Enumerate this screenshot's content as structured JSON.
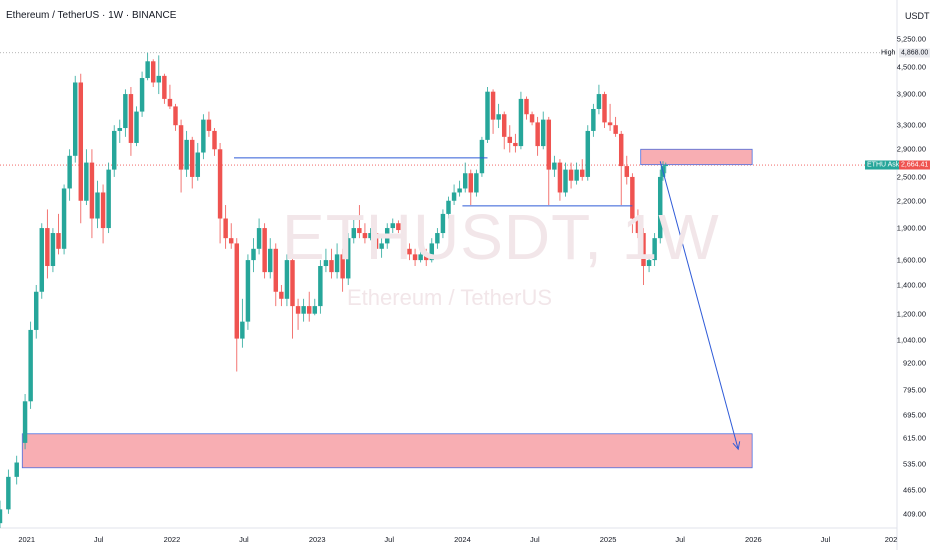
{
  "header": {
    "symbol_title": "Ethereum / TetherUS · 1W · BINANCE",
    "currency": "USDT"
  },
  "watermark": {
    "ticker": "ETHUSDT, 1W",
    "name": "Ethereum / TetherUS"
  },
  "price_axis": {
    "ticks": [
      "5,250.00",
      "4,500.00",
      "3,900.00",
      "3,300.00",
      "2,900.00",
      "2,500.00",
      "2,200.00",
      "1,900.00",
      "1,600.00",
      "1,400.00",
      "1,200.00",
      "1,040.00",
      "920.00",
      "795.00",
      "695.00",
      "615.00",
      "535.00",
      "465.00",
      "409.00"
    ],
    "high_label": "High",
    "high_value": "4,868.00",
    "current_label": "ETHU Ask",
    "current_value": "2,664.41"
  },
  "time_axis": {
    "ticks": [
      "2021",
      "Jul",
      "2022",
      "Jul",
      "2023",
      "Jul",
      "2024",
      "Jul",
      "2025",
      "Jul",
      "2026",
      "Jul",
      "202"
    ]
  },
  "colors": {
    "up": "#26a69a",
    "down": "#ef5350",
    "zone_fill": "#f8aeb3",
    "zone_border": "#4a6ee0",
    "line": "#2f5bd8",
    "high_line": "#9e9e9e",
    "current_line": "#ef5350"
  },
  "drawings": {
    "upper_zone": {
      "start": "2025-03-24",
      "end": "2025-12-29",
      "low": 2670,
      "high": 2900
    },
    "lower_zone": {
      "start": "2020-12-21",
      "end": "2025-12-29",
      "low": 525,
      "high": 630
    },
    "horizontal_lines": [
      {
        "start": "2022-06-06",
        "end": "2024-03-04",
        "price": 2770
      },
      {
        "start": "2024-01-01",
        "end": "2025-03-03",
        "price": 2140
      }
    ],
    "projection": {
      "from_date": "2025-05-12",
      "from_price": 2720,
      "to_date": "2025-11-24",
      "to_price": 580
    }
  },
  "chart_data": {
    "type": "candlestick",
    "title": "Ethereum / TetherUS · 1W · BINANCE",
    "scale": "log",
    "ylim": [
      380,
      5500
    ],
    "x_range": [
      "2020-10-26",
      "2026-12-28"
    ],
    "grid": false,
    "high": 4868,
    "last": 2664.41,
    "candles": [
      [
        "2020-10-26",
        390,
        440,
        380,
        420
      ],
      [
        "2020-11-16",
        420,
        520,
        410,
        500
      ],
      [
        "2020-12-07",
        500,
        560,
        480,
        540
      ],
      [
        "2020-12-28",
        600,
        780,
        580,
        750
      ],
      [
        "2021-01-11",
        750,
        1150,
        720,
        1100
      ],
      [
        "2021-01-25",
        1100,
        1400,
        1050,
        1350
      ],
      [
        "2021-02-08",
        1350,
        1950,
        1300,
        1900
      ],
      [
        "2021-02-22",
        1900,
        2100,
        1450,
        1550
      ],
      [
        "2021-03-08",
        1550,
        1900,
        1500,
        1850
      ],
      [
        "2021-03-22",
        1850,
        2050,
        1650,
        1700
      ],
      [
        "2021-04-05",
        1700,
        2400,
        1650,
        2350
      ],
      [
        "2021-04-19",
        2350,
        2900,
        2200,
        2800
      ],
      [
        "2021-05-03",
        2800,
        4300,
        2700,
        4150
      ],
      [
        "2021-05-17",
        4150,
        4350,
        1950,
        2200
      ],
      [
        "2021-05-31",
        2200,
        2900,
        2150,
        2700
      ],
      [
        "2021-06-14",
        2700,
        2900,
        1800,
        2000
      ],
      [
        "2021-06-28",
        2000,
        2450,
        1900,
        2300
      ],
      [
        "2021-07-12",
        2300,
        2400,
        1750,
        1900
      ],
      [
        "2021-07-26",
        1900,
        2700,
        1850,
        2600
      ],
      [
        "2021-08-09",
        2600,
        3300,
        2500,
        3200
      ],
      [
        "2021-08-23",
        3200,
        3400,
        3000,
        3250
      ],
      [
        "2021-09-06",
        3250,
        4000,
        3100,
        3900
      ],
      [
        "2021-09-20",
        3900,
        4050,
        2800,
        3000
      ],
      [
        "2021-10-04",
        3000,
        3650,
        2950,
        3550
      ],
      [
        "2021-10-18",
        3550,
        4400,
        3450,
        4250
      ],
      [
        "2021-11-01",
        4250,
        4868,
        4200,
        4650
      ],
      [
        "2021-11-15",
        4650,
        4700,
        4050,
        4150
      ],
      [
        "2021-11-29",
        4150,
        4800,
        3900,
        4300
      ],
      [
        "2021-12-13",
        4300,
        4350,
        3700,
        3800
      ],
      [
        "2021-12-27",
        3800,
        4100,
        3600,
        3650
      ],
      [
        "2022-01-10",
        3650,
        3700,
        3200,
        3300
      ],
      [
        "2022-01-24",
        3300,
        3400,
        2300,
        2600
      ],
      [
        "2022-02-07",
        2600,
        3200,
        2500,
        3050
      ],
      [
        "2022-02-21",
        3050,
        3100,
        2350,
        2500
      ],
      [
        "2022-03-07",
        2500,
        3000,
        2450,
        2850
      ],
      [
        "2022-03-21",
        2850,
        3500,
        2750,
        3400
      ],
      [
        "2022-04-04",
        3400,
        3550,
        3100,
        3200
      ],
      [
        "2022-04-18",
        3200,
        3250,
        2800,
        2900
      ],
      [
        "2022-05-02",
        2900,
        3000,
        1750,
        2000
      ],
      [
        "2022-05-16",
        2000,
        2150,
        1700,
        1800
      ],
      [
        "2022-05-30",
        1800,
        1950,
        1700,
        1750
      ],
      [
        "2022-06-13",
        1750,
        1800,
        880,
        1050
      ],
      [
        "2022-06-27",
        1050,
        1300,
        1000,
        1150
      ],
      [
        "2022-07-11",
        1150,
        1650,
        1100,
        1600
      ],
      [
        "2022-07-25",
        1600,
        1800,
        1500,
        1700
      ],
      [
        "2022-08-08",
        1700,
        2000,
        1650,
        1900
      ],
      [
        "2022-08-22",
        1900,
        1950,
        1450,
        1500
      ],
      [
        "2022-09-05",
        1500,
        1800,
        1450,
        1700
      ],
      [
        "2022-09-19",
        1700,
        1750,
        1250,
        1350
      ],
      [
        "2022-10-03",
        1350,
        1400,
        1250,
        1300
      ],
      [
        "2022-10-17",
        1300,
        1650,
        1250,
        1600
      ],
      [
        "2022-10-31",
        1600,
        1650,
        1050,
        1250
      ],
      [
        "2022-11-14",
        1250,
        1300,
        1100,
        1200
      ],
      [
        "2022-11-28",
        1200,
        1300,
        1150,
        1250
      ],
      [
        "2022-12-12",
        1250,
        1350,
        1150,
        1200
      ],
      [
        "2022-12-26",
        1200,
        1300,
        1190,
        1250
      ],
      [
        "2023-01-09",
        1250,
        1600,
        1200,
        1550
      ],
      [
        "2023-01-23",
        1550,
        1700,
        1500,
        1600
      ],
      [
        "2023-02-06",
        1600,
        1700,
        1450,
        1500
      ],
      [
        "2023-02-20",
        1500,
        1750,
        1450,
        1650
      ],
      [
        "2023-03-06",
        1650,
        1700,
        1350,
        1450
      ],
      [
        "2023-03-20",
        1450,
        1850,
        1400,
        1800
      ],
      [
        "2023-04-03",
        1800,
        2000,
        1750,
        1900
      ],
      [
        "2023-04-17",
        1900,
        2150,
        1800,
        1850
      ],
      [
        "2023-05-01",
        1850,
        1950,
        1750,
        1800
      ],
      [
        "2023-05-15",
        1800,
        1900,
        1780,
        1850
      ],
      [
        "2023-05-29",
        1850,
        1900,
        1650,
        1700
      ],
      [
        "2023-06-12",
        1700,
        1800,
        1620,
        1750
      ],
      [
        "2023-06-26",
        1750,
        1950,
        1700,
        1900
      ],
      [
        "2023-07-10",
        1900,
        2000,
        1850,
        1950
      ],
      [
        "2023-07-24",
        1950,
        1980,
        1850,
        1880
      ],
      [
        "2023-08-07",
        1880,
        1900,
        1650,
        1700
      ],
      [
        "2023-08-21",
        1700,
        1750,
        1600,
        1650
      ],
      [
        "2023-09-04",
        1650,
        1700,
        1550,
        1600
      ],
      [
        "2023-09-18",
        1600,
        1700,
        1580,
        1650
      ],
      [
        "2023-10-02",
        1650,
        1700,
        1550,
        1600
      ],
      [
        "2023-10-16",
        1600,
        1800,
        1580,
        1750
      ],
      [
        "2023-10-30",
        1750,
        1900,
        1700,
        1850
      ],
      [
        "2023-11-13",
        1850,
        2100,
        1800,
        2050
      ],
      [
        "2023-11-27",
        2050,
        2250,
        2000,
        2200
      ],
      [
        "2023-12-11",
        2200,
        2400,
        2150,
        2300
      ],
      [
        "2023-12-25",
        2300,
        2450,
        2250,
        2350
      ],
      [
        "2024-01-08",
        2350,
        2700,
        2300,
        2550
      ],
      [
        "2024-01-22",
        2550,
        2600,
        2150,
        2300
      ],
      [
        "2024-02-05",
        2300,
        2600,
        2250,
        2550
      ],
      [
        "2024-02-19",
        2550,
        3100,
        2500,
        3050
      ],
      [
        "2024-03-04",
        3050,
        4050,
        3000,
        3950
      ],
      [
        "2024-03-18",
        3950,
        4000,
        3150,
        3400
      ],
      [
        "2024-04-01",
        3400,
        3700,
        3250,
        3500
      ],
      [
        "2024-04-15",
        3500,
        3550,
        2900,
        3100
      ],
      [
        "2024-04-29",
        3100,
        3300,
        2850,
        3000
      ],
      [
        "2024-05-13",
        3000,
        3150,
        2850,
        2950
      ],
      [
        "2024-05-27",
        2950,
        3950,
        2900,
        3800
      ],
      [
        "2024-06-10",
        3800,
        3850,
        3400,
        3500
      ],
      [
        "2024-06-24",
        3500,
        3550,
        3300,
        3350
      ],
      [
        "2024-07-08",
        3350,
        3450,
        2800,
        2950
      ],
      [
        "2024-07-22",
        2950,
        3550,
        2900,
        3400
      ],
      [
        "2024-08-05",
        3400,
        3450,
        2150,
        2600
      ],
      [
        "2024-08-19",
        2600,
        2800,
        2500,
        2700
      ],
      [
        "2024-09-02",
        2700,
        2750,
        2200,
        2300
      ],
      [
        "2024-09-16",
        2300,
        2700,
        2250,
        2600
      ],
      [
        "2024-09-30",
        2600,
        2700,
        2350,
        2450
      ],
      [
        "2024-10-14",
        2450,
        2700,
        2400,
        2600
      ],
      [
        "2024-10-28",
        2600,
        2750,
        2450,
        2500
      ],
      [
        "2024-11-11",
        2500,
        3300,
        2450,
        3200
      ],
      [
        "2024-11-25",
        3200,
        3700,
        3100,
        3600
      ],
      [
        "2024-12-09",
        3600,
        4100,
        3500,
        3900
      ],
      [
        "2024-12-23",
        3900,
        3950,
        3250,
        3350
      ],
      [
        "2025-01-06",
        3350,
        3700,
        3200,
        3300
      ],
      [
        "2025-01-20",
        3300,
        3450,
        3100,
        3150
      ],
      [
        "2025-02-03",
        3150,
        3200,
        2150,
        2650
      ],
      [
        "2025-02-17",
        2650,
        2800,
        2400,
        2500
      ],
      [
        "2025-03-03",
        2500,
        2550,
        1850,
        2000
      ],
      [
        "2025-03-17",
        2000,
        2100,
        1800,
        1850
      ],
      [
        "2025-03-31",
        1850,
        1900,
        1400,
        1550
      ],
      [
        "2025-04-14",
        1550,
        1650,
        1500,
        1600
      ],
      [
        "2025-04-28",
        1600,
        1850,
        1550,
        1800
      ],
      [
        "2025-05-12",
        1800,
        2600,
        1750,
        2500
      ],
      [
        "2025-05-19",
        2500,
        2720,
        2450,
        2650
      ],
      [
        "2025-05-26",
        2650,
        2700,
        2550,
        2664.41
      ]
    ]
  }
}
